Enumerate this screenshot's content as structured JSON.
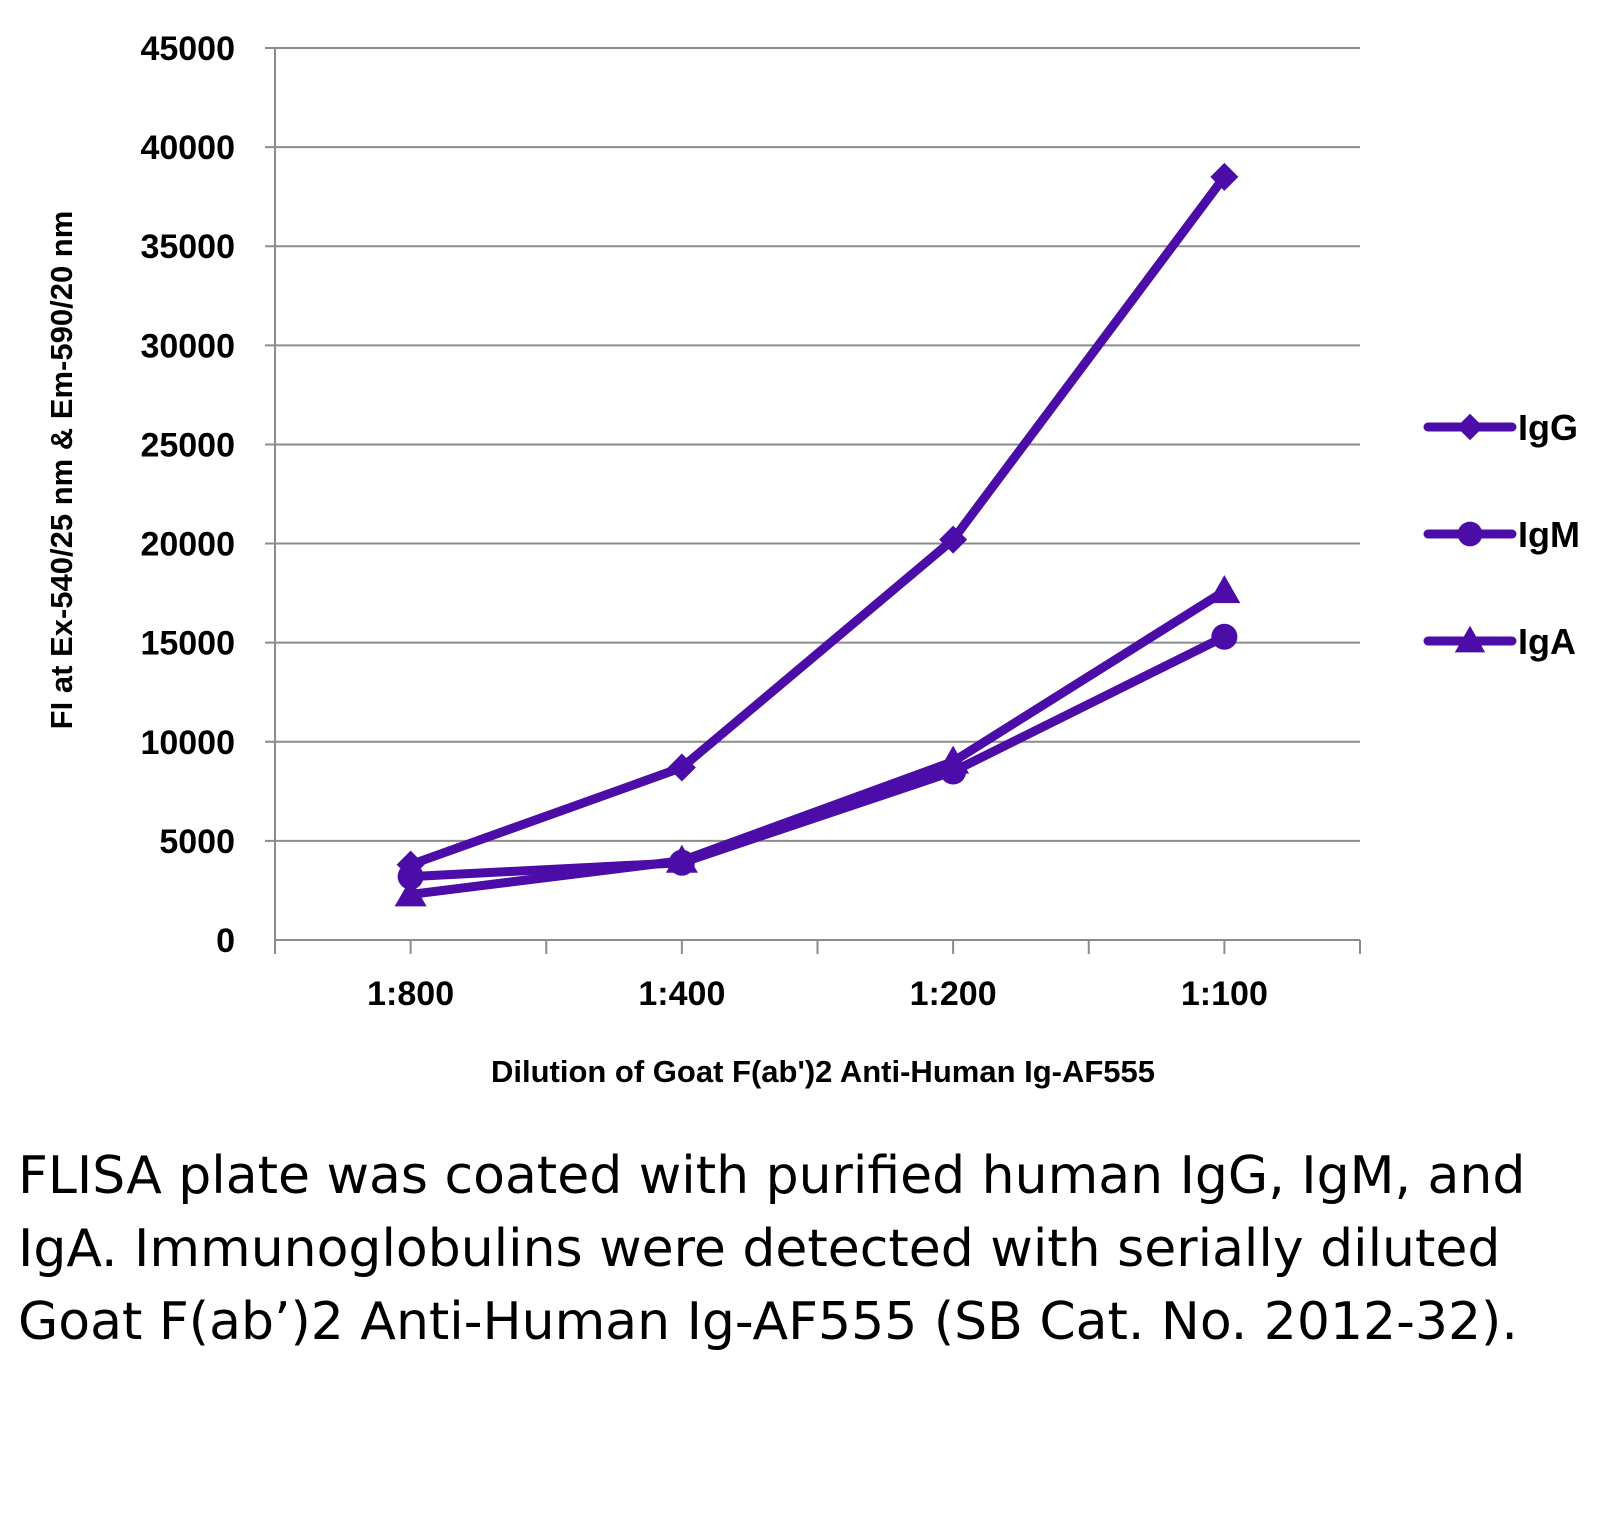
{
  "chart_data": {
    "type": "line",
    "categories": [
      "1:800",
      "1:400",
      "1:200",
      "1:100"
    ],
    "series": [
      {
        "name": "IgG",
        "marker": "diamond",
        "values": [
          3800,
          8700,
          20200,
          38500
        ]
      },
      {
        "name": "IgM",
        "marker": "circle",
        "values": [
          3200,
          3900,
          8500,
          15300
        ]
      },
      {
        "name": "IgA",
        "marker": "triangle",
        "values": [
          2300,
          4000,
          9000,
          17600
        ]
      }
    ],
    "ylabel": "FI at Ex-540/25 nm & Em-590/20 nm",
    "xlabel": "Dilution of Goat F(ab')2 Anti-Human Ig-AF555",
    "ylim": [
      0,
      45000
    ],
    "yticks": [
      0,
      5000,
      10000,
      15000,
      20000,
      25000,
      30000,
      35000,
      40000,
      45000
    ],
    "grid": true,
    "legend": "right",
    "colors": {
      "series": "#4B0CA8",
      "grid": "#8c8c8c",
      "axis": "#8c8c8c"
    }
  },
  "caption": "FLISA plate was coated with purified human IgG, IgM, and IgA.  Immunoglobulins were detected with serially diluted Goat F(ab’)2 Anti-Human Ig-AF555 (SB Cat. No. 2012-32)."
}
